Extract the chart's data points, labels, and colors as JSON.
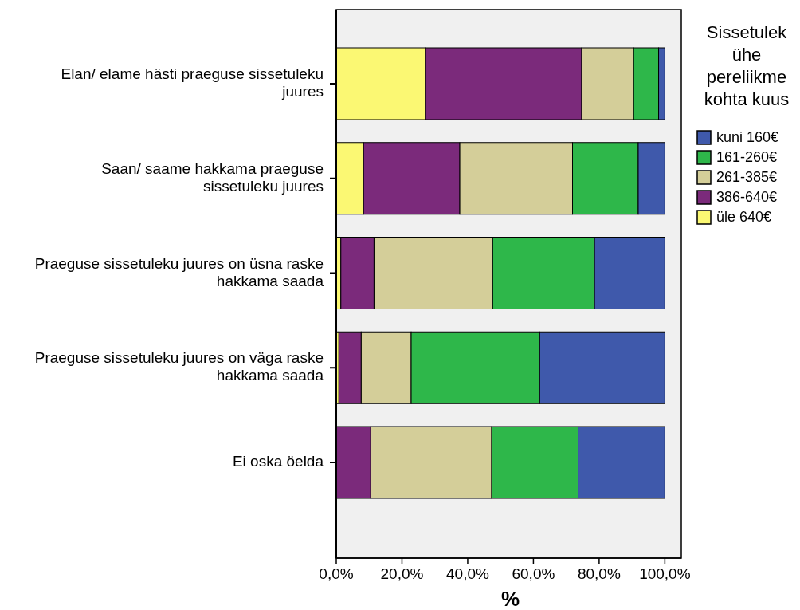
{
  "chart_data": {
    "type": "bar",
    "orientation": "horizontal",
    "stacked": true,
    "categories": [
      "Elan/ elame hästi praeguse sissetuleku juures",
      "Saan/ saame hakkama praeguse sissetuleku juures",
      "Praeguse sissetuleku juures on üsna raske hakkama saada",
      "Praeguse sissetuleku juures on väga raske hakkama saada",
      "Ei oska öelda"
    ],
    "series": [
      {
        "name": "üle 640€",
        "color": "#fbf873",
        "values": [
          27.2,
          8.3,
          1.4,
          0.8,
          0
        ]
      },
      {
        "name": "386-640€",
        "color": "#7b2a7b",
        "values": [
          47.5,
          29.3,
          10.1,
          6.8,
          10.5
        ]
      },
      {
        "name": "261-385€",
        "color": "#d4ce99",
        "values": [
          15.8,
          34.3,
          36.1,
          15.2,
          36.8
        ]
      },
      {
        "name": "161-260€",
        "color": "#2eb74a",
        "values": [
          7.6,
          20.0,
          31.0,
          39.1,
          26.3
        ]
      },
      {
        "name": "kuni 160€",
        "color": "#3f59ab",
        "values": [
          1.9,
          8.1,
          21.4,
          38.1,
          26.4
        ]
      }
    ],
    "xlim": [
      0,
      105
    ],
    "xticks": [
      {
        "value": 0,
        "label": "0,0%"
      },
      {
        "value": 20,
        "label": "20,0%"
      },
      {
        "value": 40,
        "label": "40,0%"
      },
      {
        "value": 60,
        "label": "60,0%"
      },
      {
        "value": 80,
        "label": "80,0%"
      },
      {
        "value": 100,
        "label": "100,0%"
      }
    ],
    "xlabel": "%",
    "legend_title": "Sissetulek ühe pereliikme kohta kuus",
    "legend": "right",
    "grid": false
  }
}
